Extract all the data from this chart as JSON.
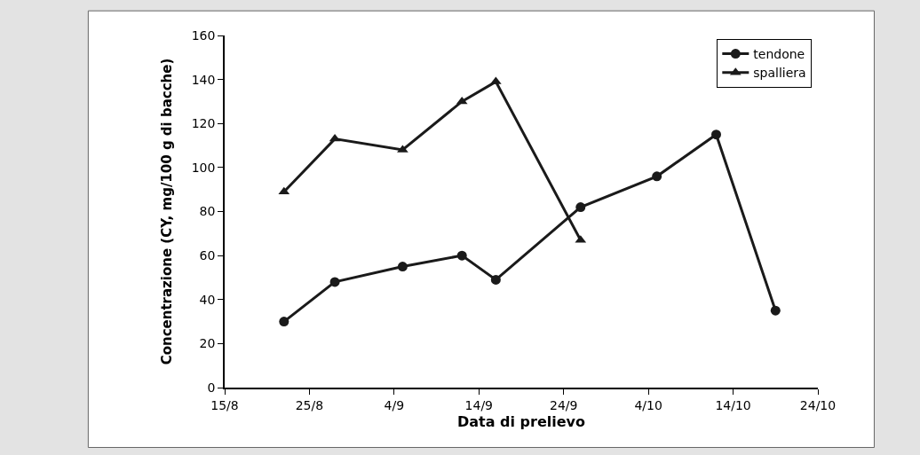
{
  "chart_data": {
    "type": "line",
    "xlabel": "Data di prelievo",
    "ylabel": "Concentrazione (CY, mg/100 g di bacche)",
    "x": [
      "--08-22",
      "--08-28",
      "--09-05",
      "--09-12",
      "--09-16",
      "--09-26",
      "--10-05",
      "--10-12",
      "--10-19"
    ],
    "series": [
      {
        "name": "tendone",
        "color": "#1a1a1a",
        "marker": "circle",
        "values": [
          30,
          48,
          55,
          60,
          49,
          82,
          96,
          115,
          35
        ]
      },
      {
        "name": "spalliera",
        "color": "#1a1a1a",
        "marker": "triangle",
        "x": [
          "--08-22",
          "--08-28",
          "--09-05",
          "--09-12",
          "--09-16",
          "--09-26"
        ],
        "values": [
          89,
          113,
          108,
          130,
          139,
          67
        ]
      }
    ],
    "xlim": [
      "--08-15",
      "--10-24"
    ],
    "xticks": [
      {
        "value": "--08-15",
        "label": "15/8"
      },
      {
        "value": "--08-25",
        "label": "25/8"
      },
      {
        "value": "--09-04",
        "label": "4/9"
      },
      {
        "value": "--09-14",
        "label": "14/9"
      },
      {
        "value": "--09-24",
        "label": "24/9"
      },
      {
        "value": "--10-04",
        "label": "4/10"
      },
      {
        "value": "--10-14",
        "label": "14/10"
      },
      {
        "value": "--10-24",
        "label": "24/10"
      }
    ],
    "ylim": [
      0,
      160
    ],
    "yticks": [
      0,
      20,
      40,
      60,
      80,
      100,
      120,
      140,
      160
    ],
    "legend": "top right"
  }
}
